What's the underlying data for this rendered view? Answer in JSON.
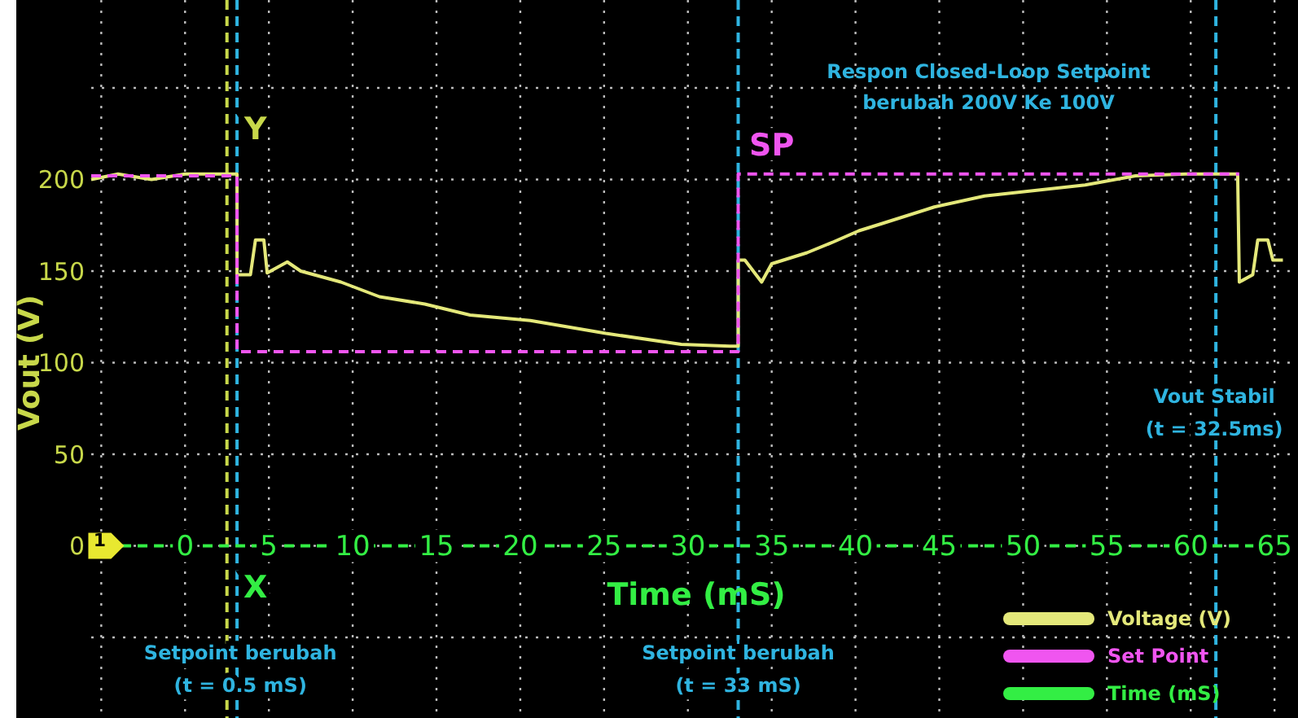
{
  "chart_data": {
    "type": "line",
    "title": "Respon Closed-Loop Setpoint\nberubah 200V Ke 100V",
    "xlabel": "Time (mS)",
    "ylabel": "Vout (V)",
    "xlim": [
      -5.6,
      66.4
    ],
    "ylim": [
      -94,
      298
    ],
    "xticks": [
      {
        "value": -5,
        "label": null
      },
      0,
      5,
      10,
      15,
      20,
      25,
      30,
      35,
      40,
      45,
      50,
      55,
      60,
      65
    ],
    "yticks": [
      {
        "value": -50,
        "label": null
      },
      0,
      50,
      100,
      150,
      200,
      {
        "value": 250,
        "label": null
      }
    ],
    "grid": true,
    "legend": "bottom right",
    "series": [
      {
        "name": "Voltage (V)",
        "color": "#e4e87a",
        "line_style": "solid",
        "x": [
          -5.6,
          -4,
          -2,
          0,
          2.5,
          3.1,
          3.1,
          3.9,
          4.2,
          4.7,
          4.9,
          6.1,
          6.9,
          9.3,
          11.6,
          14.3,
          17,
          20.6,
          25.1,
          29.6,
          32.5,
          33,
          33,
          33.4,
          34.4,
          35,
          37.1,
          38.7,
          40.2,
          41.6,
          44.7,
          47.7,
          50.7,
          53.7,
          56.7,
          59.7,
          62.8,
          62.9,
          63.7,
          64,
          64.6,
          64.9,
          65.5
        ],
        "values": [
          200,
          203,
          200,
          203,
          203,
          203,
          148,
          148,
          167,
          167,
          149,
          155,
          150,
          144,
          136,
          132,
          126,
          123,
          116,
          110,
          109,
          109,
          156,
          156,
          144,
          154,
          160,
          166,
          172,
          176,
          185,
          191,
          194,
          197,
          202,
          203,
          203,
          144,
          148,
          167,
          167,
          156,
          156
        ]
      },
      {
        "name": "Set Point",
        "color": "#f055f0",
        "line_style": "dashed",
        "x": [
          -5.6,
          3.1,
          3.1,
          33,
          33,
          62.9
        ],
        "values": [
          202,
          202,
          106,
          106,
          203,
          203
        ]
      },
      {
        "name": "Time (mS)",
        "color": "#33ee44",
        "line_style": "dashed",
        "x": [
          -3.8,
          65.5
        ],
        "values": [
          0,
          0
        ]
      }
    ],
    "ref_lines": [
      {
        "axis": "x",
        "value": 2.5,
        "color": "#c8d84a",
        "line_style": "dashed"
      },
      {
        "axis": "x",
        "value": 3.1,
        "color": "#2fb4e0",
        "line_style": "dashed"
      },
      {
        "axis": "x",
        "value": 33,
        "color": "#2fb4e0",
        "line_style": "dashed"
      },
      {
        "axis": "x",
        "value": 61.5,
        "color": "#2fb4e0",
        "line_style": "dashed"
      }
    ],
    "annotations": [
      "Y",
      "X",
      "SP",
      {
        "text": "Setpoint berubah\n(t = 0.5 mS)",
        "x": 3.3,
        "y": -62
      },
      {
        "text": "Setpoint berubah\n(t = 33 mS)",
        "x": 33,
        "y": -62
      },
      {
        "text": "Vout Stabil\n(t = 32.5ms)",
        "x": 61.4,
        "y": 78
      },
      {
        "text": "1",
        "x": -4.8,
        "y": 0
      }
    ]
  }
}
